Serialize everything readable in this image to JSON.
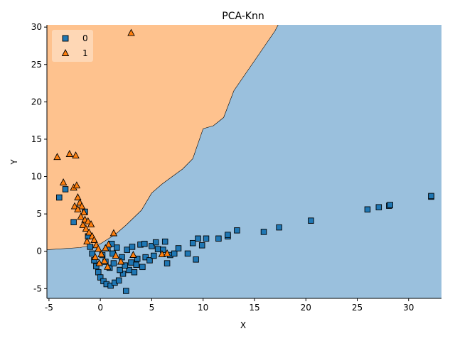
{
  "chart_data": {
    "type": "scatter",
    "title": "PCA-Knn",
    "xlabel": "X",
    "ylabel": "Y",
    "xlim": [
      -5.2,
      33.2
    ],
    "ylim": [
      -6.3,
      30.3
    ],
    "xticks": [
      -5,
      0,
      5,
      10,
      15,
      20,
      25,
      30
    ],
    "yticks": [
      -5,
      0,
      5,
      10,
      15,
      20,
      25,
      30
    ],
    "grid": false,
    "legend_position": "top-left",
    "region_colors": {
      "class_0": "#9ac0dd",
      "class_1": "#fec28e"
    },
    "decision_boundary": [
      [
        -5.2,
        0.2
      ],
      [
        -2,
        0.5
      ],
      [
        0,
        1.0
      ],
      [
        1.5,
        2.3
      ],
      [
        2.5,
        3.5
      ],
      [
        4,
        5.5
      ],
      [
        5,
        7.8
      ],
      [
        6,
        9.0
      ],
      [
        7,
        10.0
      ],
      [
        8,
        11.0
      ],
      [
        9,
        12.4
      ],
      [
        10,
        16.4
      ],
      [
        11,
        16.8
      ],
      [
        12,
        17.9
      ],
      [
        13,
        21.5
      ],
      [
        14,
        23.5
      ],
      [
        15,
        25.5
      ],
      [
        16,
        27.5
      ],
      [
        17,
        29.5
      ],
      [
        17.3,
        30.3
      ]
    ],
    "series": [
      {
        "name": "0",
        "marker": "square",
        "color": "#1f77b4",
        "points": [
          [
            -4,
            7.2
          ],
          [
            -3.4,
            8.3
          ],
          [
            -2.6,
            3.9
          ],
          [
            -1.5,
            5.3
          ],
          [
            -1.2,
            2.0
          ],
          [
            -1.0,
            0.6
          ],
          [
            -0.8,
            -0.3
          ],
          [
            -0.6,
            -1.2
          ],
          [
            -0.4,
            -2.0
          ],
          [
            -0.2,
            -2.8
          ],
          [
            0.0,
            -3.5
          ],
          [
            0.3,
            -4.0
          ],
          [
            0.6,
            -4.4
          ],
          [
            1.0,
            -4.6
          ],
          [
            1.4,
            -4.2
          ],
          [
            1.8,
            -3.9
          ],
          [
            2.5,
            -5.3
          ],
          [
            2.2,
            -3.0
          ],
          [
            2.8,
            -2.5
          ],
          [
            3.3,
            -2.8
          ],
          [
            3.0,
            -1.5
          ],
          [
            3.6,
            -1.0
          ],
          [
            4.1,
            -2.1
          ],
          [
            4.4,
            -0.8
          ],
          [
            4.8,
            -1.2
          ],
          [
            5.2,
            -0.6
          ],
          [
            5.6,
            0.3
          ],
          [
            6.1,
            0.2
          ],
          [
            6.5,
            -1.6
          ],
          [
            6.8,
            -0.5
          ],
          [
            7.2,
            -0.3
          ],
          [
            7.6,
            0.4
          ],
          [
            1.2,
            -0.3
          ],
          [
            1.6,
            0.5
          ],
          [
            2.1,
            -0.8
          ],
          [
            2.6,
            0.2
          ],
          [
            3.1,
            0.6
          ],
          [
            3.9,
            0.9
          ],
          [
            4.3,
            1.0
          ],
          [
            5.0,
            0.7
          ],
          [
            5.4,
            1.2
          ],
          [
            6.3,
            1.3
          ],
          [
            0.5,
            -1.4
          ],
          [
            0.9,
            -2.2
          ],
          [
            1.3,
            -1.6
          ],
          [
            1.9,
            -2.5
          ],
          [
            2.4,
            -1.9
          ],
          [
            3.5,
            -1.8
          ],
          [
            0.2,
            -0.5
          ],
          [
            0.7,
            0.4
          ],
          [
            1.1,
            1.0
          ],
          [
            8.5,
            -0.3
          ],
          [
            9.0,
            1.1
          ],
          [
            9.3,
            -1.1
          ],
          [
            9.5,
            1.7
          ],
          [
            9.9,
            0.8
          ],
          [
            10.3,
            1.7
          ],
          [
            11.5,
            1.7
          ],
          [
            12.4,
            2.0
          ],
          [
            12.4,
            2.2
          ],
          [
            13.3,
            2.8
          ],
          [
            15.9,
            2.6
          ],
          [
            17.4,
            3.2
          ],
          [
            20.5,
            4.1
          ],
          [
            26.0,
            5.6
          ],
          [
            27.1,
            5.9
          ],
          [
            28.1,
            6.1
          ],
          [
            28.2,
            6.2
          ],
          [
            32.2,
            7.3
          ],
          [
            32.2,
            7.4
          ]
        ]
      },
      {
        "name": "1",
        "marker": "triangle",
        "color": "#ff7f0e",
        "points": [
          [
            3.0,
            29.2
          ],
          [
            -4.2,
            12.6
          ],
          [
            -3.0,
            13.0
          ],
          [
            -2.4,
            12.8
          ],
          [
            -3.6,
            9.2
          ],
          [
            -2.6,
            8.5
          ],
          [
            -2.3,
            8.8
          ],
          [
            -2.2,
            7.2
          ],
          [
            -2.0,
            6.5
          ],
          [
            -1.8,
            6.0
          ],
          [
            -2.5,
            6.0
          ],
          [
            -2.2,
            5.6
          ],
          [
            -1.6,
            5.2
          ],
          [
            -1.9,
            4.6
          ],
          [
            -1.5,
            4.2
          ],
          [
            -1.2,
            4.0
          ],
          [
            -1.7,
            3.5
          ],
          [
            -1.4,
            3.0
          ],
          [
            -1.1,
            2.5
          ],
          [
            -0.9,
            3.6
          ],
          [
            -0.8,
            2.0
          ],
          [
            -0.6,
            1.5
          ],
          [
            -1.3,
            1.3
          ],
          [
            -0.4,
            0.8
          ],
          [
            -0.2,
            0.3
          ],
          [
            0.1,
            -0.4
          ],
          [
            0.4,
            -1.3
          ],
          [
            0.7,
            -2.1
          ],
          [
            1.3,
            2.4
          ],
          [
            0.8,
            0.9
          ],
          [
            1.5,
            -0.6
          ],
          [
            2.0,
            -1.4
          ],
          [
            6.0,
            -0.4
          ],
          [
            6.5,
            -0.3
          ],
          [
            3.2,
            -0.5
          ],
          [
            -0.5,
            -0.8
          ],
          [
            -0.1,
            -1.6
          ],
          [
            0.5,
            0.4
          ]
        ]
      }
    ]
  }
}
